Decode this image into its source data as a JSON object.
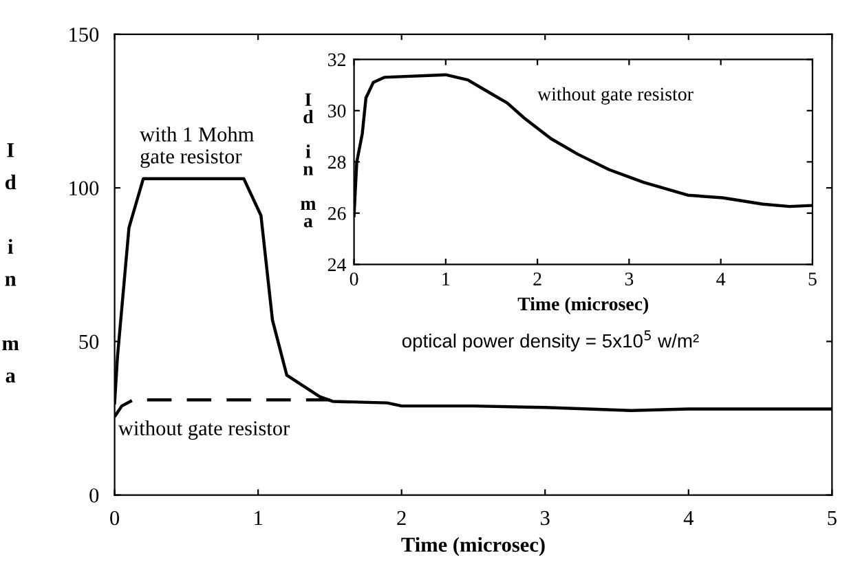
{
  "chart_data": [
    {
      "type": "line",
      "xlabel": "Time (microsec)",
      "ylabel": "Id in ma",
      "xlim": [
        0,
        5
      ],
      "ylim": [
        0,
        150
      ],
      "xticks": [
        0,
        1,
        2,
        3,
        4,
        5
      ],
      "yticks": [
        0,
        50,
        100,
        150
      ],
      "grid": false,
      "legend": false,
      "series": [
        {
          "color": "#000000",
          "line_style": "solid",
          "x": [
            0,
            0.02,
            0.1,
            0.2,
            0.5,
            0.9,
            1.02,
            1.1,
            1.2,
            1.43,
            1.52,
            1.9,
            2.0,
            2.5,
            3.0,
            3.6,
            4.0,
            4.5,
            5.0
          ],
          "values": [
            30,
            45,
            87,
            103,
            103,
            103,
            91,
            57,
            39,
            32,
            30.5,
            30,
            29,
            29,
            28.5,
            27.5,
            28,
            28,
            28
          ]
        },
        {
          "color": "#000000",
          "line_style": "dashed",
          "x": [
            0,
            0.05,
            0.13,
            0.5,
            1.0,
            1.5
          ],
          "values": [
            25.5,
            29,
            31,
            31,
            31,
            31
          ]
        }
      ],
      "annotations": [
        "with 1 Mohm\ngate resistor",
        "without gate resistor",
        "optical power density = 5x10$^{5}$ w/m²"
      ]
    },
    {
      "type": "line",
      "xlabel": "Time (microsec)",
      "ylabel": "Id in ma",
      "xlim": [
        0,
        5
      ],
      "ylim": [
        24,
        32
      ],
      "xticks": [
        0,
        1,
        2,
        3,
        4,
        5
      ],
      "yticks": [
        24,
        26,
        28,
        30,
        32
      ],
      "grid": false,
      "legend": false,
      "series": [
        {
          "color": "#000000",
          "line_style": "solid",
          "x": [
            0,
            0.03,
            0.09,
            0.13,
            0.21,
            0.33,
            1.0,
            1.24,
            1.43,
            1.67,
            1.86,
            2.15,
            2.44,
            2.78,
            3.16,
            3.64,
            4.02,
            4.46,
            4.75,
            5.0
          ],
          "values": [
            25.9,
            28.0,
            29.1,
            30.5,
            31.1,
            31.3,
            31.4,
            31.2,
            30.8,
            30.3,
            29.7,
            28.9,
            28.3,
            27.7,
            27.2,
            26.7,
            26.6,
            26.35,
            26.26,
            26.3
          ]
        }
      ],
      "annotations": [
        "without gate resistor"
      ]
    }
  ]
}
